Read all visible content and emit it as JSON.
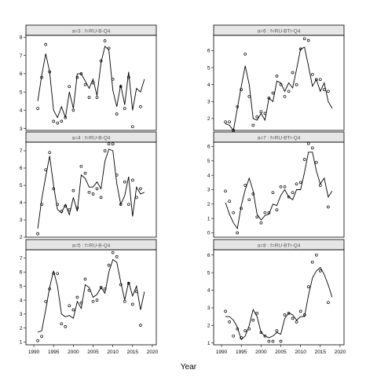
{
  "chart_data": {
    "type": "scatter",
    "xlabel": "Year",
    "panels": [
      {
        "strip": "a=3 : f=RU-B-Q4",
        "xlim": [
          1988,
          2021
        ],
        "ylim": [
          2.9,
          8.1
        ],
        "yticks": [
          3,
          4,
          5,
          6,
          7,
          8
        ],
        "line": {
          "x": [
            1991,
            1992,
            1993,
            1994,
            1995,
            1996,
            1997,
            1998,
            1999,
            2000,
            2001,
            2002,
            2003,
            2004,
            2005,
            2006,
            2007,
            2008,
            2009,
            2010,
            2011,
            2012,
            2013,
            2014,
            2015,
            2016,
            2017,
            2018
          ],
          "y": [
            4.5,
            5.9,
            7.1,
            6.1,
            4.0,
            3.6,
            4.2,
            3.6,
            5.0,
            4.1,
            6.0,
            6.0,
            5.6,
            5.2,
            5.7,
            4.8,
            6.6,
            7.5,
            7.3,
            5.1,
            4.2,
            5.4,
            4.3,
            6.1,
            4.0,
            5.2,
            5.0,
            5.7
          ]
        },
        "points": {
          "x": [
            1991,
            1992,
            1993,
            1994,
            1995,
            1996,
            1997,
            1998,
            1999,
            2000,
            2001,
            2002,
            2003,
            2004,
            2005,
            2006,
            2007,
            2008,
            2009,
            2010,
            2011,
            2012,
            2013,
            2014,
            2015,
            2017
          ],
          "y": [
            4.1,
            5.8,
            7.6,
            6.1,
            3.4,
            3.3,
            3.4,
            3.6,
            5.3,
            4.0,
            5.8,
            6.0,
            5.4,
            4.7,
            5.5,
            4.7,
            6.7,
            7.8,
            7.4,
            5.7,
            3.8,
            5.3,
            4.1,
            5.8,
            3.1,
            4.2
          ]
        }
      },
      {
        "strip": "a=6 : f=RU-BTr-Q4",
        "xlim": [
          1988,
          2021
        ],
        "ylim": [
          1.3,
          6.9
        ],
        "yticks": [
          2,
          3,
          4,
          5,
          6
        ],
        "line": {
          "x": [
            1991,
            1992,
            1993,
            1994,
            1995,
            1996,
            1997,
            1998,
            1999,
            2000,
            2001,
            2002,
            2003,
            2004,
            2005,
            2006,
            2007,
            2008,
            2009,
            2010,
            2011,
            2012,
            2013,
            2014,
            2015,
            2016,
            2017,
            2018
          ],
          "y": [
            1.7,
            1.6,
            1.3,
            2.6,
            3.9,
            5.1,
            4.0,
            2.0,
            1.9,
            2.3,
            1.9,
            3.2,
            3.0,
            4.2,
            4.1,
            3.6,
            4.1,
            3.8,
            4.9,
            6.1,
            6.2,
            5.1,
            3.9,
            4.3,
            3.6,
            4.1,
            3.0,
            2.6
          ]
        },
        "points": {
          "x": [
            1991,
            1992,
            1993,
            1994,
            1995,
            1996,
            1997,
            1998,
            1999,
            2000,
            2001,
            2002,
            2003,
            2004,
            2005,
            2006,
            2007,
            2008,
            2009,
            2010,
            2011,
            2012,
            2013,
            2014,
            2015,
            2016,
            2017
          ],
          "y": [
            1.8,
            1.8,
            1.3,
            2.7,
            3.7,
            5.8,
            3.3,
            1.6,
            2.1,
            2.4,
            2.3,
            3.2,
            3.5,
            4.5,
            4.0,
            3.3,
            3.6,
            4.7,
            4.0,
            6.1,
            6.7,
            6.6,
            4.6,
            4.3,
            4.3,
            3.7,
            3.6
          ]
        }
      },
      {
        "strip": "a=4 : f=RU-B-Q4",
        "xlim": [
          1988,
          2021
        ],
        "ylim": [
          2.0,
          7.5
        ],
        "yticks": [
          2,
          3,
          4,
          5,
          6,
          7
        ],
        "line": {
          "x": [
            1991,
            1992,
            1993,
            1994,
            1995,
            1996,
            1997,
            1998,
            1999,
            2000,
            2001,
            2002,
            2003,
            2004,
            2005,
            2006,
            2007,
            2008,
            2009,
            2010,
            2011,
            2012,
            2013,
            2014,
            2015,
            2016,
            2017,
            2018
          ],
          "y": [
            2.5,
            4.2,
            5.5,
            6.7,
            5.0,
            3.6,
            3.4,
            3.9,
            3.3,
            4.3,
            3.5,
            5.6,
            5.4,
            4.9,
            4.9,
            5.2,
            4.8,
            6.4,
            7.1,
            7.0,
            5.1,
            3.9,
            4.4,
            5.5,
            3.2,
            4.9,
            4.5,
            4.6
          ]
        },
        "points": {
          "x": [
            1991,
            1992,
            1993,
            1994,
            1995,
            1996,
            1997,
            1998,
            1999,
            2000,
            2001,
            2002,
            2003,
            2004,
            2005,
            2006,
            2007,
            2008,
            2009,
            2010,
            2011,
            2012,
            2013,
            2014,
            2015,
            2016,
            2017
          ],
          "y": [
            2.2,
            3.9,
            5.9,
            6.9,
            4.8,
            3.9,
            3.5,
            3.8,
            3.6,
            4.7,
            3.7,
            6.1,
            5.7,
            4.6,
            4.5,
            4.8,
            4.3,
            7.0,
            7.4,
            7.4,
            5.6,
            3.9,
            5.2,
            3.9,
            5.3,
            4.3,
            4.8
          ]
        }
      },
      {
        "strip": "a=7 : f=RU-BTr-Q4",
        "xlim": [
          1988,
          2021
        ],
        "ylim": [
          -0.3,
          6.3
        ],
        "yticks": [
          0,
          1,
          2,
          3,
          4,
          5,
          6
        ],
        "line": {
          "x": [
            1991,
            1992,
            1993,
            1994,
            1995,
            1996,
            1997,
            1998,
            1999,
            2000,
            2001,
            2002,
            2003,
            2004,
            2005,
            2006,
            2007,
            2008,
            2009,
            2010,
            2011,
            2012,
            2013,
            2014,
            2015,
            2016,
            2017,
            2018
          ],
          "y": [
            2.1,
            1.3,
            0.7,
            0.3,
            1.9,
            3.0,
            3.8,
            2.9,
            1.3,
            0.9,
            1.2,
            1.3,
            2.0,
            1.9,
            2.6,
            3.0,
            2.5,
            2.3,
            3.0,
            3.0,
            4.2,
            5.6,
            5.6,
            4.3,
            3.4,
            3.8,
            2.5,
            2.9
          ]
        },
        "points": {
          "x": [
            1991,
            1992,
            1993,
            1994,
            1995,
            1996,
            1997,
            1998,
            1999,
            2000,
            2001,
            2002,
            2003,
            2004,
            2005,
            2006,
            2007,
            2008,
            2009,
            2010,
            2011,
            2012,
            2013,
            2014,
            2015,
            2017
          ],
          "y": [
            2.9,
            2.2,
            1.4,
            0.0,
            1.7,
            3.3,
            2.3,
            2.7,
            1.1,
            0.7,
            1.4,
            1.4,
            2.8,
            1.6,
            3.2,
            3.2,
            2.5,
            2.8,
            3.4,
            3.5,
            5.1,
            6.2,
            5.9,
            4.9,
            3.3,
            1.8
          ]
        }
      },
      {
        "strip": "a=5 : f=RU-B-Q4",
        "xlim": [
          1988,
          2021
        ],
        "ylim": [
          0.8,
          7.6
        ],
        "yticks": [
          1,
          2,
          3,
          4,
          5,
          6,
          7
        ],
        "line": {
          "x": [
            1991,
            1992,
            1993,
            1994,
            1995,
            1996,
            1997,
            1998,
            1999,
            2000,
            2001,
            2002,
            2003,
            2004,
            2005,
            2006,
            2007,
            2008,
            2009,
            2010,
            2011,
            2012,
            2013,
            2014,
            2015,
            2016,
            2017,
            2018
          ],
          "y": [
            1.7,
            1.8,
            3.3,
            4.9,
            6.1,
            5.0,
            3.0,
            2.8,
            2.9,
            2.7,
            3.9,
            3.4,
            5.1,
            4.9,
            4.2,
            4.4,
            4.9,
            4.5,
            6.0,
            6.9,
            6.7,
            5.3,
            4.0,
            5.3,
            4.3,
            5.0,
            3.3,
            4.6
          ]
        },
        "points": {
          "x": [
            1991,
            1992,
            1993,
            1994,
            1995,
            1996,
            1997,
            1998,
            1999,
            2000,
            2001,
            2002,
            2003,
            2004,
            2005,
            2006,
            2007,
            2008,
            2009,
            2010,
            2011,
            2012,
            2013,
            2014,
            2015,
            2016,
            2017
          ],
          "y": [
            1.1,
            1.4,
            3.9,
            4.8,
            5.9,
            5.9,
            2.3,
            2.1,
            3.6,
            3.3,
            4.2,
            3.8,
            5.5,
            4.7,
            3.9,
            4.0,
            4.9,
            4.8,
            6.5,
            7.4,
            7.1,
            5.1,
            3.9,
            5.2,
            3.7,
            4.6,
            2.2
          ]
        }
      },
      {
        "strip": "a=8 : f=RU-BTr-Q4",
        "xlim": [
          1988,
          2021
        ],
        "ylim": [
          0.9,
          6.3
        ],
        "yticks": [
          1,
          2,
          3,
          4,
          5,
          6
        ],
        "line": {
          "x": [
            1991,
            1992,
            1993,
            1994,
            1995,
            1996,
            1997,
            1998,
            1999,
            2000,
            2001,
            2002,
            2003,
            2004,
            2005,
            2006,
            2007,
            2008,
            2009,
            2010,
            2011,
            2012,
            2013,
            2014,
            2015,
            2016,
            2017,
            2018
          ],
          "y": [
            2.5,
            2.5,
            2.3,
            1.9,
            1.2,
            1.4,
            2.0,
            2.9,
            2.5,
            1.6,
            1.4,
            1.3,
            1.4,
            1.6,
            1.5,
            2.4,
            2.7,
            2.6,
            2.3,
            2.5,
            2.5,
            3.7,
            4.7,
            5.1,
            5.3,
            4.9,
            4.3,
            3.6
          ]
        },
        "points": {
          "x": [
            1991,
            1992,
            1993,
            1994,
            1995,
            1996,
            1997,
            1998,
            1999,
            2000,
            2001,
            2002,
            2003,
            2004,
            2005,
            2006,
            2007,
            2008,
            2009,
            2010,
            2011,
            2012,
            2013,
            2014,
            2015,
            2017
          ],
          "y": [
            2.8,
            2.2,
            1.4,
            1.8,
            1.3,
            1.7,
            1.8,
            2.3,
            2.7,
            1.6,
            1.4,
            1.1,
            1.1,
            1.7,
            1.1,
            2.6,
            2.7,
            2.4,
            2.2,
            2.8,
            2.6,
            4.2,
            5.6,
            6.0,
            5.1,
            3.3
          ]
        }
      }
    ]
  }
}
